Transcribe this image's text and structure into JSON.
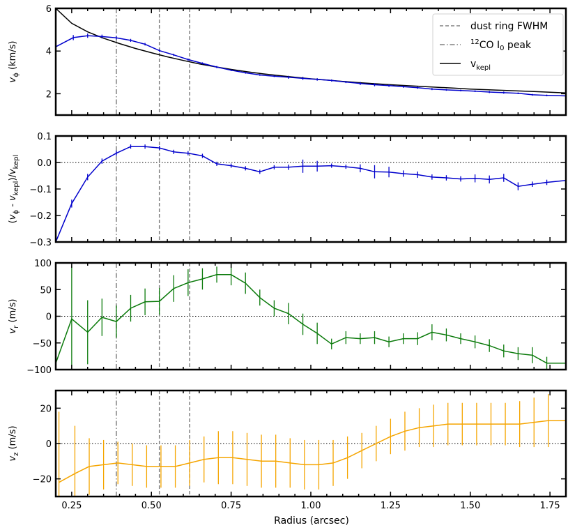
{
  "figure": {
    "xlabel": "Radius (arcsec)"
  },
  "chart_data": [
    {
      "type": "line",
      "ylabel": "v_ϕ (km/s)",
      "xlim": [
        0.2,
        1.8
      ],
      "ylim": [
        1.0,
        6.0
      ],
      "xticks": [
        0.25,
        0.5,
        0.75,
        1.0,
        1.25,
        1.5,
        1.75
      ],
      "yticks": [
        2,
        4,
        6
      ],
      "ytick_labels": [
        "2",
        "4",
        "6"
      ],
      "vlines": {
        "dashed": [
          0.525,
          0.62
        ],
        "dashdot": [
          0.39
        ]
      },
      "legend": {
        "position": "top-right",
        "entries": [
          {
            "label": "dust ring FWHM",
            "style": "dashed",
            "color": "#808080"
          },
          {
            "label": "12CO I0 peak",
            "style": "dashdot",
            "color": "#808080"
          },
          {
            "label": "vkepl",
            "style": "solid",
            "color": "#000000"
          }
        ]
      },
      "series": [
        {
          "name": "vkepl",
          "color": "#000000",
          "x": [
            0.2,
            0.25,
            0.3,
            0.35,
            0.4,
            0.45,
            0.5,
            0.55,
            0.6,
            0.65,
            0.7,
            0.75,
            0.8,
            0.85,
            0.9,
            0.95,
            1.0,
            1.05,
            1.1,
            1.15,
            1.2,
            1.25,
            1.3,
            1.35,
            1.4,
            1.45,
            1.5,
            1.55,
            1.6,
            1.65,
            1.7,
            1.75,
            1.8
          ],
          "y": [
            6.0,
            5.3,
            4.9,
            4.6,
            4.35,
            4.12,
            3.92,
            3.73,
            3.56,
            3.4,
            3.26,
            3.14,
            3.03,
            2.93,
            2.85,
            2.77,
            2.7,
            2.64,
            2.58,
            2.52,
            2.47,
            2.42,
            2.38,
            2.34,
            2.3,
            2.26,
            2.22,
            2.19,
            2.16,
            2.13,
            2.1,
            2.07,
            2.04
          ]
        },
        {
          "name": "",
          "color": "#0000cc",
          "x": [
            0.2,
            0.255,
            0.3,
            0.345,
            0.39,
            0.435,
            0.48,
            0.525,
            0.57,
            0.615,
            0.66,
            0.705,
            0.75,
            0.795,
            0.84,
            0.885,
            0.93,
            0.975,
            1.02,
            1.065,
            1.11,
            1.155,
            1.2,
            1.245,
            1.29,
            1.335,
            1.38,
            1.425,
            1.47,
            1.515,
            1.56,
            1.605,
            1.65,
            1.695,
            1.74,
            1.8
          ],
          "y": [
            4.2,
            4.63,
            4.72,
            4.68,
            4.62,
            4.5,
            4.32,
            4.02,
            3.82,
            3.6,
            3.42,
            3.25,
            3.1,
            2.98,
            2.88,
            2.82,
            2.77,
            2.72,
            2.67,
            2.62,
            2.55,
            2.48,
            2.42,
            2.38,
            2.33,
            2.28,
            2.22,
            2.18,
            2.15,
            2.12,
            2.08,
            2.05,
            2.02,
            1.95,
            1.92,
            1.9
          ],
          "err": [
            0,
            0.12,
            0.1,
            0.09,
            0.08,
            0.07,
            0.06,
            0.06,
            0.05,
            0.05,
            0.05,
            0.05,
            0.04,
            0.04,
            0.04,
            0.04,
            0.07,
            0.07,
            0.06,
            0.05,
            0.05,
            0.07,
            0.07,
            0.06,
            0.05,
            0.05,
            0.05,
            0.04,
            0.04,
            0.04,
            0.05,
            0.05,
            0.04,
            0.04,
            0.04,
            0
          ]
        }
      ]
    },
    {
      "type": "line",
      "ylabel": "(v_ϕ - v_kepl)/v_kepl",
      "xlim": [
        0.2,
        1.8
      ],
      "ylim": [
        -0.3,
        0.1
      ],
      "xticks": [
        0.25,
        0.5,
        0.75,
        1.0,
        1.25,
        1.5,
        1.75
      ],
      "yticks": [
        -0.3,
        -0.2,
        -0.1,
        0.0,
        0.1
      ],
      "ytick_labels": [
        "−0.3",
        "−0.2",
        "−0.1",
        "0.0",
        "0.1"
      ],
      "vlines": {
        "dashed": [
          0.525,
          0.62
        ],
        "dashdot": [
          0.39
        ]
      },
      "zero_line": 0,
      "series": [
        {
          "name": "",
          "color": "#0000cc",
          "x": [
            0.2,
            0.25,
            0.3,
            0.345,
            0.39,
            0.435,
            0.48,
            0.525,
            0.57,
            0.615,
            0.66,
            0.705,
            0.75,
            0.795,
            0.84,
            0.885,
            0.93,
            0.975,
            1.02,
            1.065,
            1.11,
            1.155,
            1.2,
            1.245,
            1.29,
            1.335,
            1.38,
            1.425,
            1.47,
            1.515,
            1.56,
            1.605,
            1.65,
            1.695,
            1.74,
            1.8
          ],
          "y": [
            -0.3,
            -0.155,
            -0.055,
            0.005,
            0.035,
            0.06,
            0.06,
            0.055,
            0.04,
            0.035,
            0.025,
            -0.005,
            -0.012,
            -0.022,
            -0.035,
            -0.018,
            -0.018,
            -0.014,
            -0.014,
            -0.012,
            -0.016,
            -0.022,
            -0.035,
            -0.036,
            -0.042,
            -0.046,
            -0.055,
            -0.058,
            -0.062,
            -0.06,
            -0.064,
            -0.058,
            -0.09,
            -0.082,
            -0.075,
            -0.068
          ],
          "err": [
            0,
            0.015,
            0.012,
            0.01,
            0.01,
            0.008,
            0.008,
            0.008,
            0.008,
            0.008,
            0.008,
            0.008,
            0.008,
            0.008,
            0.008,
            0.008,
            0.01,
            0.025,
            0.02,
            0.008,
            0.008,
            0.015,
            0.025,
            0.02,
            0.012,
            0.012,
            0.01,
            0.01,
            0.01,
            0.015,
            0.015,
            0.015,
            0.015,
            0.01,
            0.01,
            0
          ]
        }
      ]
    },
    {
      "type": "line",
      "ylabel": "v_r (m/s)",
      "xlim": [
        0.2,
        1.8
      ],
      "ylim": [
        -100,
        100
      ],
      "xticks": [
        0.25,
        0.5,
        0.75,
        1.0,
        1.25,
        1.5,
        1.75
      ],
      "yticks": [
        -100,
        -50,
        0,
        50,
        100
      ],
      "ytick_labels": [
        "−100",
        "−50",
        "0",
        "50",
        "100"
      ],
      "vlines": {
        "dashed": [
          0.525,
          0.62
        ],
        "dashdot": [
          0.39
        ]
      },
      "zero_line": 0,
      "series": [
        {
          "name": "",
          "color": "#0a7a0a",
          "x": [
            0.2,
            0.25,
            0.3,
            0.345,
            0.39,
            0.435,
            0.48,
            0.525,
            0.57,
            0.615,
            0.66,
            0.705,
            0.75,
            0.795,
            0.84,
            0.885,
            0.93,
            0.975,
            1.02,
            1.065,
            1.11,
            1.155,
            1.2,
            1.245,
            1.29,
            1.335,
            1.38,
            1.425,
            1.47,
            1.515,
            1.56,
            1.605,
            1.65,
            1.695,
            1.74,
            1.8
          ],
          "y": [
            -88,
            -5,
            -30,
            -2,
            -10,
            15,
            27,
            28,
            52,
            63,
            70,
            78,
            78,
            62,
            35,
            15,
            5,
            -15,
            -32,
            -52,
            -40,
            -42,
            -40,
            -48,
            -42,
            -42,
            -30,
            -35,
            -42,
            -48,
            -55,
            -65,
            -70,
            -73,
            -88,
            -88
          ],
          "err": [
            0,
            100,
            60,
            35,
            30,
            25,
            25,
            25,
            25,
            25,
            20,
            15,
            20,
            20,
            15,
            15,
            20,
            20,
            20,
            10,
            12,
            10,
            12,
            10,
            10,
            12,
            15,
            12,
            10,
            12,
            12,
            12,
            12,
            15,
            12,
            0
          ]
        }
      ]
    },
    {
      "type": "line",
      "ylabel": "v_z (m/s)",
      "xlim": [
        0.2,
        1.8
      ],
      "ylim": [
        -30,
        30
      ],
      "xticks": [
        0.25,
        0.5,
        0.75,
        1.0,
        1.25,
        1.5,
        1.75
      ],
      "xtick_labels": [
        "0.25",
        "0.50",
        "0.75",
        "1.00",
        "1.25",
        "1.50",
        "1.75"
      ],
      "yticks": [
        -20,
        0,
        20
      ],
      "ytick_labels": [
        "−20",
        "0",
        "20"
      ],
      "vlines": {
        "dashed": [
          0.525,
          0.62
        ],
        "dashdot": [
          0.39
        ]
      },
      "zero_line": 0,
      "series": [
        {
          "name": "",
          "color": "#f5a500",
          "x": [
            0.21,
            0.26,
            0.305,
            0.35,
            0.395,
            0.44,
            0.485,
            0.53,
            0.575,
            0.62,
            0.665,
            0.71,
            0.755,
            0.8,
            0.845,
            0.89,
            0.935,
            0.98,
            1.025,
            1.07,
            1.115,
            1.16,
            1.205,
            1.25,
            1.295,
            1.34,
            1.385,
            1.43,
            1.475,
            1.52,
            1.565,
            1.61,
            1.655,
            1.7,
            1.745,
            1.8
          ],
          "y": [
            -22,
            -17,
            -13,
            -12,
            -11,
            -12,
            -13,
            -13,
            -13,
            -11,
            -9,
            -8,
            -8,
            -9,
            -10,
            -10,
            -11,
            -12,
            -12,
            -11,
            -8,
            -4,
            0,
            4,
            7,
            9,
            10,
            11,
            11,
            11,
            11,
            11,
            11,
            12,
            13,
            13
          ],
          "err": [
            40,
            27,
            16,
            14,
            12,
            12,
            12,
            12,
            12,
            13,
            13,
            15,
            15,
            15,
            15,
            15,
            14,
            14,
            14,
            13,
            12,
            10,
            10,
            10,
            11,
            11,
            12,
            12,
            12,
            12,
            12,
            12,
            13,
            14,
            15,
            18
          ]
        }
      ]
    }
  ]
}
